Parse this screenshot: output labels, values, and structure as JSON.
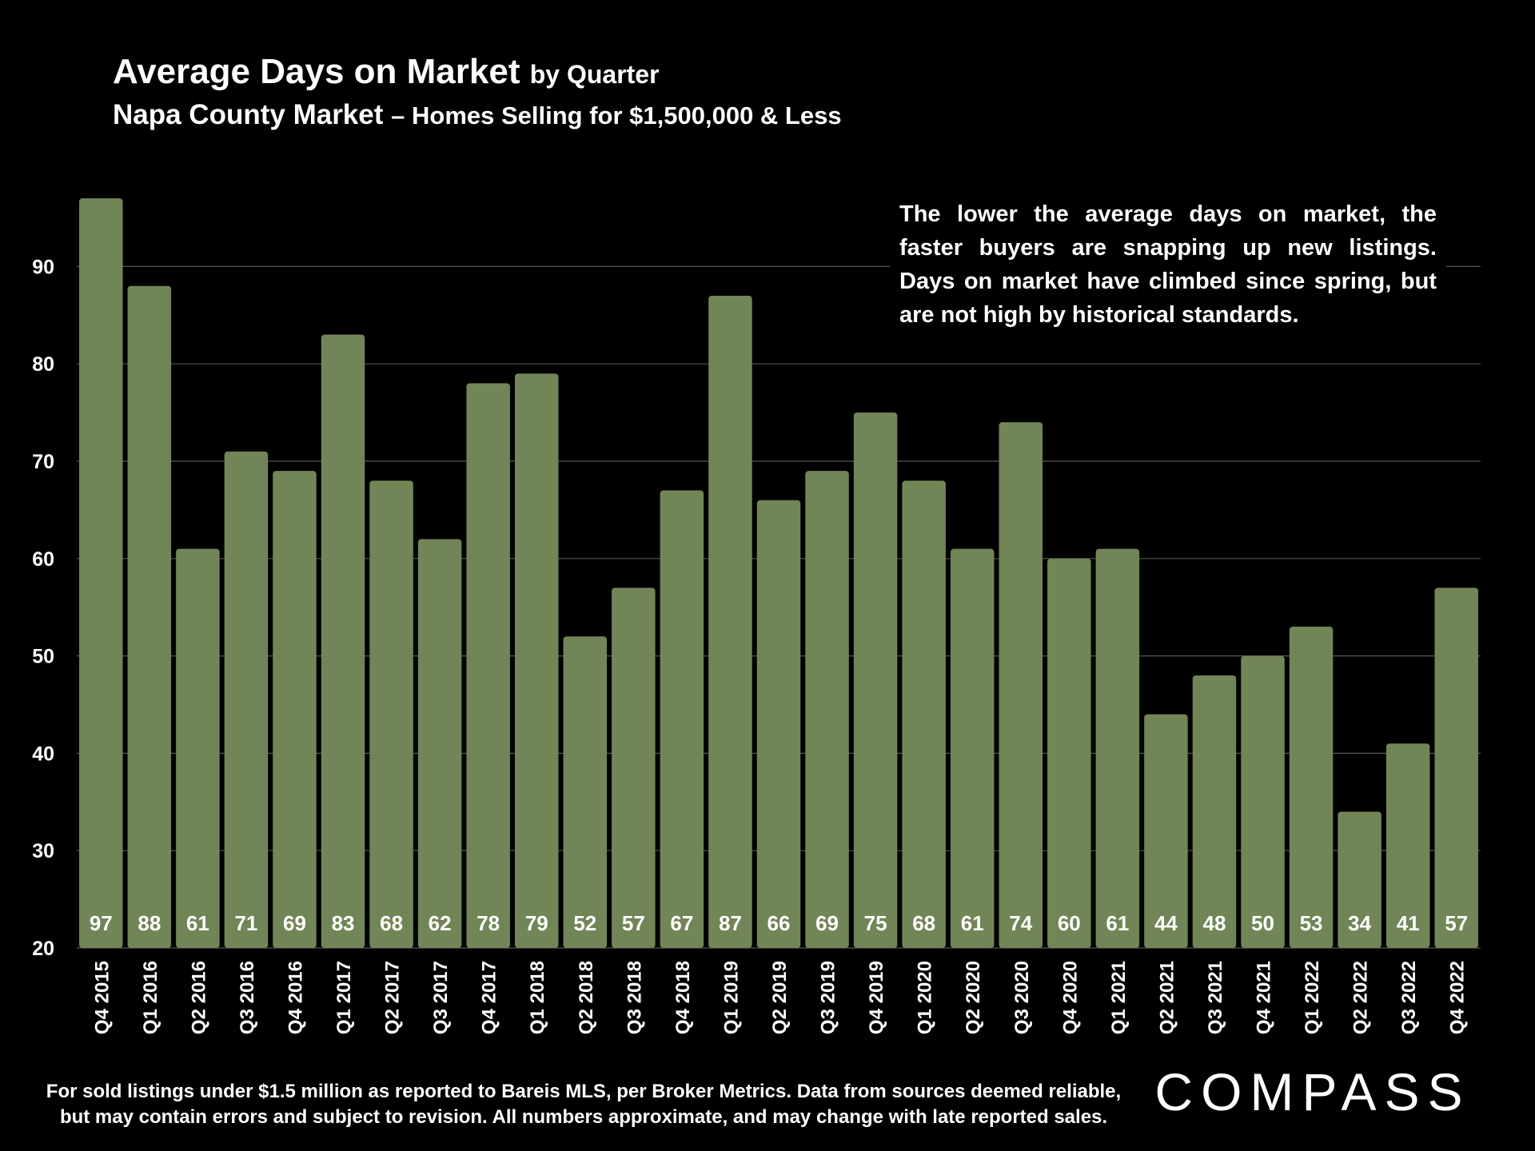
{
  "title": {
    "main": "Average Days on Market",
    "suffix": "by Quarter",
    "subtitle_main": "Napa County Market",
    "subtitle_rest": "– Homes Selling for $1,500,000 & Less"
  },
  "annotation": "The lower the average days on market, the faster buyers are snapping up new listings. Days on market have climbed since spring, but are not high by historical standards.",
  "footnote": {
    "line1": "For sold listings under $1.5 million as reported to Bareis MLS, per Broker Metrics. Data from sources deemed reliable,",
    "line2": "but may contain errors and subject to revision. All numbers approximate, and may change with late reported sales."
  },
  "brand": {
    "name": "COMPASS"
  },
  "colors": {
    "background": "#000000",
    "bar": "#728557",
    "text": "#ffffff",
    "gridline": "#555555"
  },
  "chart_data": {
    "type": "bar",
    "title": "Average Days on Market by Quarter",
    "subtitle": "Napa County Market – Homes Selling for $1,500,000 & Less",
    "xlabel": "",
    "ylabel": "",
    "ylim": [
      20,
      97
    ],
    "yticks": [
      20,
      30,
      40,
      50,
      60,
      70,
      80,
      90
    ],
    "grid": true,
    "categories": [
      "Q4 2015",
      "Q1 2016",
      "Q2 2016",
      "Q3 2016",
      "Q4 2016",
      "Q1 2017",
      "Q2 2017",
      "Q3 2017",
      "Q4 2017",
      "Q1 2018",
      "Q2 2018",
      "Q3 2018",
      "Q4 2018",
      "Q1 2019",
      "Q2 2019",
      "Q3 2019",
      "Q4 2019",
      "Q1 2020",
      "Q2 2020",
      "Q3 2020",
      "Q4 2020",
      "Q1 2021",
      "Q2 2021",
      "Q3 2021",
      "Q4 2021",
      "Q1 2022",
      "Q2 2022",
      "Q3 2022",
      "Q4 2022"
    ],
    "values": [
      97,
      88,
      61,
      71,
      69,
      83,
      68,
      62,
      78,
      79,
      52,
      57,
      67,
      87,
      66,
      69,
      75,
      68,
      61,
      74,
      60,
      61,
      44,
      48,
      50,
      53,
      34,
      41,
      57
    ]
  }
}
